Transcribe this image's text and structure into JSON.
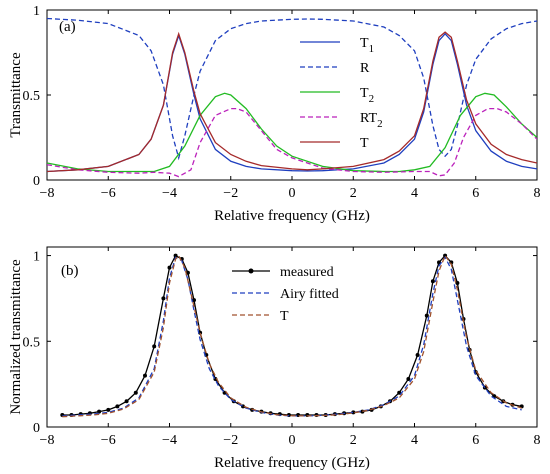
{
  "chart_data": [
    {
      "type": "line",
      "panel_label": "(a)",
      "xlabel": "Relative frequency (GHz)",
      "ylabel": "Transmittance",
      "xlim": [
        -8,
        8
      ],
      "ylim": [
        0,
        1
      ],
      "xticks": [
        -8,
        -6,
        -4,
        -2,
        0,
        2,
        4,
        6,
        8
      ],
      "yticks": [
        0,
        0.5,
        1
      ],
      "ytick_labels": [
        "0",
        "0.5",
        "1"
      ],
      "grid": false,
      "legend_position": "top-right",
      "series": [
        {
          "name": "T1",
          "legend_main": "T",
          "legend_sub": "1",
          "color": "#1f3fbf",
          "dash": "solid",
          "x": [
            -8,
            -7,
            -6,
            -5,
            -4.6,
            -4.2,
            -3.9,
            -3.7,
            -3.5,
            -3.2,
            -3,
            -2.5,
            -2,
            -1.5,
            -1,
            0,
            0.5,
            1,
            2,
            3,
            3.5,
            4,
            4.3,
            4.6,
            4.8,
            5,
            5.2,
            5.4,
            5.7,
            6,
            6.5,
            7,
            7.5,
            8
          ],
          "y": [
            0.05,
            0.06,
            0.08,
            0.15,
            0.24,
            0.44,
            0.74,
            0.85,
            0.74,
            0.5,
            0.36,
            0.18,
            0.11,
            0.08,
            0.065,
            0.055,
            0.053,
            0.055,
            0.065,
            0.1,
            0.15,
            0.24,
            0.4,
            0.68,
            0.82,
            0.86,
            0.82,
            0.68,
            0.44,
            0.29,
            0.17,
            0.11,
            0.08,
            0.065
          ]
        },
        {
          "name": "R",
          "legend_main": "R",
          "legend_sub": "",
          "color": "#1f3fbf",
          "dash": "dashed",
          "x": [
            -8,
            -7,
            -6,
            -5,
            -4.6,
            -4.2,
            -3.9,
            -3.7,
            -3.5,
            -3.2,
            -3,
            -2.5,
            -2,
            -1.5,
            -1,
            0,
            0.5,
            1,
            2,
            3,
            3.5,
            4,
            4.3,
            4.6,
            4.8,
            5,
            5.2,
            5.4,
            5.7,
            6,
            6.5,
            7,
            7.5,
            8
          ],
          "y": [
            0.95,
            0.94,
            0.92,
            0.85,
            0.76,
            0.56,
            0.26,
            0.13,
            0.26,
            0.5,
            0.64,
            0.82,
            0.89,
            0.92,
            0.935,
            0.945,
            0.947,
            0.945,
            0.935,
            0.9,
            0.85,
            0.76,
            0.6,
            0.32,
            0.18,
            0.14,
            0.18,
            0.32,
            0.56,
            0.71,
            0.83,
            0.89,
            0.92,
            0.935
          ]
        },
        {
          "name": "T2",
          "legend_main": "T",
          "legend_sub": "2",
          "color": "#22bb22",
          "dash": "solid",
          "x": [
            -8,
            -7,
            -6,
            -5,
            -4.5,
            -4,
            -3.5,
            -3,
            -2.5,
            -2.2,
            -2,
            -1.5,
            -1,
            -0.5,
            0,
            1,
            2,
            3,
            3.5,
            4,
            4.5,
            5,
            5.5,
            6,
            6.3,
            6.6,
            7,
            7.5,
            8
          ],
          "y": [
            0.1,
            0.065,
            0.05,
            0.05,
            0.05,
            0.08,
            0.2,
            0.38,
            0.49,
            0.51,
            0.5,
            0.42,
            0.3,
            0.2,
            0.14,
            0.08,
            0.055,
            0.05,
            0.05,
            0.06,
            0.08,
            0.19,
            0.38,
            0.49,
            0.51,
            0.5,
            0.43,
            0.33,
            0.25
          ]
        },
        {
          "name": "RT2",
          "legend_main": "RT",
          "legend_sub": "2",
          "color": "#bb22bb",
          "dash": "dashed",
          "x": [
            -8,
            -7,
            -6,
            -5,
            -4.5,
            -4,
            -3.7,
            -3.3,
            -3,
            -2.5,
            -2,
            -1.8,
            -1.5,
            -1,
            -0.5,
            0,
            1,
            2,
            3,
            4,
            4.5,
            4.8,
            5,
            5.3,
            5.6,
            6,
            6.4,
            6.7,
            7,
            7.5,
            8
          ],
          "y": [
            0.09,
            0.06,
            0.045,
            0.04,
            0.045,
            0.04,
            0.02,
            0.06,
            0.22,
            0.38,
            0.42,
            0.42,
            0.4,
            0.29,
            0.18,
            0.13,
            0.07,
            0.05,
            0.045,
            0.05,
            0.05,
            0.025,
            0.03,
            0.1,
            0.25,
            0.38,
            0.42,
            0.42,
            0.4,
            0.33,
            0.24
          ]
        },
        {
          "name": "T",
          "legend_main": "T",
          "legend_sub": "",
          "color": "#a52a2a",
          "dash": "solid",
          "x": [
            -8,
            -7,
            -6,
            -5,
            -4.6,
            -4.2,
            -3.9,
            -3.7,
            -3.5,
            -3.2,
            -3,
            -2.5,
            -2,
            -1.5,
            -1,
            0,
            0.5,
            1,
            2,
            3,
            3.5,
            4,
            4.3,
            4.6,
            4.8,
            5,
            5.2,
            5.4,
            5.7,
            6,
            6.5,
            7,
            7.5,
            8
          ],
          "y": [
            0.05,
            0.06,
            0.08,
            0.15,
            0.24,
            0.44,
            0.75,
            0.86,
            0.75,
            0.52,
            0.39,
            0.22,
            0.15,
            0.11,
            0.085,
            0.065,
            0.06,
            0.065,
            0.08,
            0.12,
            0.17,
            0.26,
            0.42,
            0.7,
            0.84,
            0.87,
            0.84,
            0.7,
            0.47,
            0.33,
            0.21,
            0.15,
            0.12,
            0.1
          ]
        }
      ]
    },
    {
      "type": "line",
      "panel_label": "(b)",
      "xlabel": "Relative frequency (GHz)",
      "ylabel": "Normalized transmittance",
      "xlim": [
        -8,
        8
      ],
      "ylim": [
        0,
        1.05
      ],
      "xticks": [
        -8,
        -6,
        -4,
        -2,
        0,
        2,
        4,
        6,
        8
      ],
      "yticks": [
        0,
        0.5,
        1
      ],
      "ytick_labels": [
        "0",
        "0.5",
        "1"
      ],
      "grid": false,
      "legend_position": "top-center",
      "series": [
        {
          "name": "measured",
          "legend_main": "measured",
          "legend_sub": "",
          "color": "#000000",
          "dash": "solid",
          "markers": true,
          "x": [
            -7.5,
            -7.2,
            -6.9,
            -6.6,
            -6.3,
            -6,
            -5.7,
            -5.4,
            -5.1,
            -4.8,
            -4.5,
            -4.2,
            -4,
            -3.8,
            -3.6,
            -3.4,
            -3.2,
            -3,
            -2.8,
            -2.5,
            -2.2,
            -1.9,
            -1.6,
            -1.3,
            -1,
            -0.7,
            -0.4,
            -0.1,
            0.2,
            0.5,
            0.8,
            1.1,
            1.4,
            1.7,
            2,
            2.3,
            2.6,
            2.9,
            3.2,
            3.5,
            3.8,
            4.1,
            4.4,
            4.6,
            4.8,
            5,
            5.2,
            5.4,
            5.6,
            5.8,
            6,
            6.3,
            6.6,
            6.9,
            7.2,
            7.5
          ],
          "y": [
            0.07,
            0.07,
            0.075,
            0.08,
            0.09,
            0.1,
            0.12,
            0.15,
            0.2,
            0.3,
            0.47,
            0.75,
            0.93,
            1.0,
            0.98,
            0.9,
            0.74,
            0.55,
            0.42,
            0.28,
            0.2,
            0.15,
            0.12,
            0.1,
            0.09,
            0.08,
            0.075,
            0.07,
            0.07,
            0.07,
            0.07,
            0.07,
            0.075,
            0.08,
            0.085,
            0.09,
            0.1,
            0.12,
            0.15,
            0.2,
            0.28,
            0.42,
            0.65,
            0.85,
            0.96,
            1.0,
            0.96,
            0.84,
            0.63,
            0.45,
            0.32,
            0.23,
            0.18,
            0.15,
            0.13,
            0.12
          ]
        },
        {
          "name": "Airy fitted",
          "legend_main": "Airy fitted",
          "legend_sub": "",
          "color": "#1f3fbf",
          "dash": "dashed",
          "x": [
            -7.5,
            -7,
            -6.5,
            -6,
            -5.5,
            -5,
            -4.5,
            -4.2,
            -4,
            -3.8,
            -3.6,
            -3.4,
            -3.2,
            -3,
            -2.7,
            -2.4,
            -2,
            -1.5,
            -1,
            -0.5,
            0,
            0.5,
            1,
            1.5,
            2,
            2.5,
            3,
            3.5,
            4,
            4.3,
            4.6,
            4.8,
            5,
            5.2,
            5.4,
            5.7,
            6,
            6.5,
            7,
            7.5
          ],
          "y": [
            0.065,
            0.07,
            0.075,
            0.085,
            0.11,
            0.17,
            0.34,
            0.62,
            0.87,
            0.99,
            0.97,
            0.86,
            0.68,
            0.51,
            0.34,
            0.24,
            0.16,
            0.11,
            0.085,
            0.07,
            0.065,
            0.065,
            0.068,
            0.075,
            0.085,
            0.1,
            0.13,
            0.18,
            0.3,
            0.48,
            0.78,
            0.94,
            0.99,
            0.92,
            0.74,
            0.47,
            0.3,
            0.18,
            0.12,
            0.1
          ]
        },
        {
          "name": "T",
          "legend_main": "T",
          "legend_sub": "",
          "color": "#a0522d",
          "dash": "dashed",
          "x": [
            -7.5,
            -7,
            -6.5,
            -6,
            -5.5,
            -5,
            -4.5,
            -4.2,
            -4,
            -3.8,
            -3.7,
            -3.5,
            -3.3,
            -3,
            -2.7,
            -2.4,
            -2,
            -1.5,
            -1,
            -0.5,
            0,
            0.5,
            1,
            1.5,
            2,
            2.5,
            3,
            3.5,
            4,
            4.3,
            4.6,
            4.8,
            5,
            5.2,
            5.4,
            5.7,
            6,
            6.5,
            7,
            7.5
          ],
          "y": [
            0.06,
            0.065,
            0.07,
            0.08,
            0.105,
            0.16,
            0.32,
            0.58,
            0.84,
            0.98,
            1.0,
            0.93,
            0.78,
            0.55,
            0.37,
            0.26,
            0.17,
            0.115,
            0.088,
            0.072,
            0.066,
            0.065,
            0.067,
            0.072,
            0.082,
            0.098,
            0.125,
            0.17,
            0.28,
            0.44,
            0.73,
            0.91,
            1.0,
            0.95,
            0.8,
            0.52,
            0.33,
            0.2,
            0.14,
            0.11
          ]
        }
      ]
    }
  ]
}
